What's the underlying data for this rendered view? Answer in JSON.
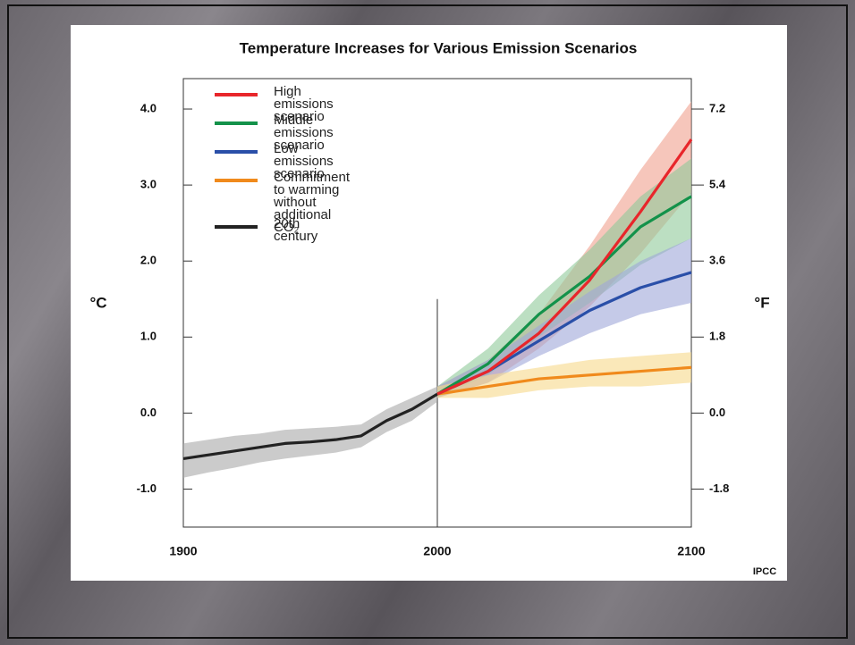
{
  "chart_data": {
    "type": "line",
    "title": "Temperature Increases for Various Emission Scenarios",
    "ylabel": "°C",
    "y2label": "°F",
    "source": "IPCC",
    "xlim": [
      1900,
      2100
    ],
    "xticks": [
      1900,
      2000,
      2100
    ],
    "ylim": [
      -1.5,
      4.4
    ],
    "yticks": [
      {
        "value": -1,
        "label": "-1.0"
      },
      {
        "value": 0,
        "label": "0.0"
      },
      {
        "value": 1,
        "label": "1.0"
      },
      {
        "value": 2,
        "label": "2.0"
      },
      {
        "value": 3,
        "label": "3.0"
      },
      {
        "value": 4,
        "label": "4.0"
      }
    ],
    "y2lim": [
      -2.7,
      7.92
    ],
    "y2ticks": [
      -1.8,
      {
        "value": 0,
        "label": "0.0"
      },
      1.8,
      3.6,
      5.4,
      7.2
    ],
    "legend": "upper left",
    "series": [
      {
        "name": "High emissions scenario",
        "color": "#e8262b",
        "band_color": "#f0a08e",
        "x": [
          2000,
          2020,
          2040,
          2060,
          2080,
          2100
        ],
        "values": [
          0.25,
          0.55,
          1.05,
          1.75,
          2.65,
          3.6
        ],
        "lower": [
          0.2,
          0.4,
          0.85,
          1.4,
          2.1,
          2.9
        ],
        "upper": [
          0.35,
          0.7,
          1.3,
          2.2,
          3.2,
          4.1
        ]
      },
      {
        "name": "Middle emissions scenario",
        "color": "#13924a",
        "band_color": "#8fc99a",
        "x": [
          2000,
          2020,
          2040,
          2060,
          2080,
          2100
        ],
        "values": [
          0.25,
          0.65,
          1.3,
          1.8,
          2.45,
          2.85
        ],
        "lower": [
          0.2,
          0.5,
          1.0,
          1.45,
          1.95,
          2.3
        ],
        "upper": [
          0.35,
          0.85,
          1.55,
          2.15,
          2.85,
          3.35
        ]
      },
      {
        "name": "Low emissions scenario",
        "color": "#2a4fa8",
        "band_color": "#9fa6d8",
        "x": [
          2000,
          2020,
          2040,
          2060,
          2080,
          2100
        ],
        "values": [
          0.25,
          0.55,
          0.95,
          1.35,
          1.65,
          1.85
        ],
        "lower": [
          0.2,
          0.4,
          0.75,
          1.05,
          1.3,
          1.45
        ],
        "upper": [
          0.35,
          0.7,
          1.15,
          1.6,
          2.0,
          2.3
        ]
      },
      {
        "name": "Commitment to warming\nwithout additional CO₂",
        "color": "#f08a1c",
        "band_color": "#f6d98a",
        "x": [
          2000,
          2020,
          2040,
          2060,
          2080,
          2100
        ],
        "values": [
          0.25,
          0.35,
          0.45,
          0.5,
          0.55,
          0.6
        ],
        "lower": [
          0.2,
          0.2,
          0.3,
          0.35,
          0.35,
          0.4
        ],
        "upper": [
          0.35,
          0.5,
          0.6,
          0.7,
          0.75,
          0.8
        ]
      },
      {
        "name": "20th century",
        "color": "#222222",
        "band_color": "#a8a8a8",
        "x": [
          1900,
          1910,
          1920,
          1930,
          1940,
          1950,
          1960,
          1970,
          1980,
          1990,
          2000
        ],
        "values": [
          -0.6,
          -0.55,
          -0.5,
          -0.45,
          -0.4,
          -0.38,
          -0.35,
          -0.3,
          -0.1,
          0.05,
          0.25
        ],
        "lower": [
          -0.85,
          -0.78,
          -0.72,
          -0.65,
          -0.6,
          -0.56,
          -0.52,
          -0.45,
          -0.25,
          -0.1,
          0.15
        ],
        "upper": [
          -0.4,
          -0.35,
          -0.3,
          -0.27,
          -0.22,
          -0.2,
          -0.18,
          -0.15,
          0.05,
          0.2,
          0.35
        ]
      }
    ]
  }
}
